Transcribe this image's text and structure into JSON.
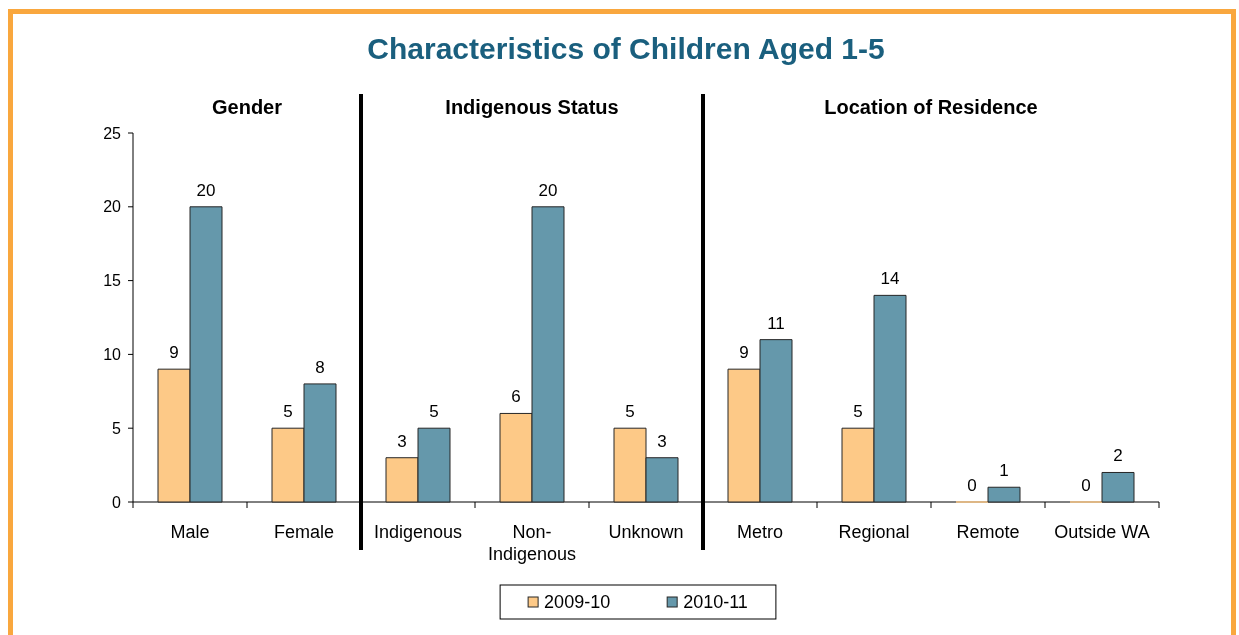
{
  "chart_data": {
    "type": "bar",
    "title": "Characteristics of Children Aged 1-5",
    "categories": [
      "Male",
      "Female",
      "Indigenous",
      "Non-Indigenous",
      "Unknown",
      "Metro",
      "Regional",
      "Remote",
      "Outside WA"
    ],
    "series": [
      {
        "name": "2009-10",
        "color": "#fdc987",
        "values": [
          9,
          5,
          3,
          6,
          5,
          9,
          5,
          0,
          0
        ]
      },
      {
        "name": "2010-11",
        "color": "#6598ab",
        "values": [
          20,
          8,
          5,
          20,
          3,
          11,
          14,
          1,
          2
        ]
      }
    ],
    "ylim": [
      0,
      25
    ],
    "yticks": [
      0,
      5,
      10,
      15,
      20,
      25
    ],
    "annotations": [
      "Gender",
      "Indigenous Status",
      "Location of Residence"
    ],
    "data_labels": true,
    "legend": "bottom"
  }
}
